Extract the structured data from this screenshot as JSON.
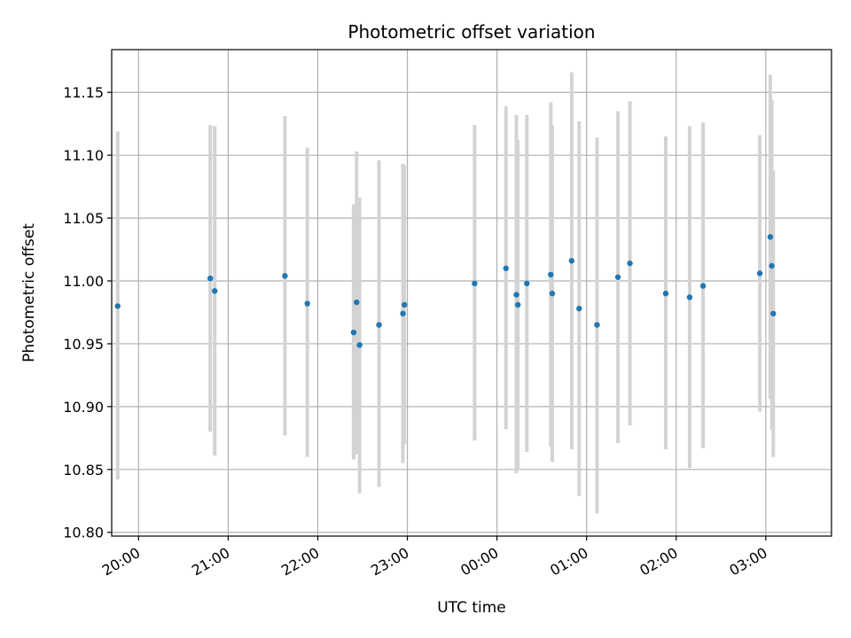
{
  "chart_data": {
    "type": "scatter",
    "title": "Photometric offset variation",
    "xlabel": "UTC time",
    "ylabel": "Photometric offset",
    "x_unit": "UTC time (HH:MM, over midnight)",
    "xlim": [
      "19:42",
      "03:44"
    ],
    "ylim": [
      10.797,
      11.184
    ],
    "x_ticks": [
      "20:00",
      "21:00",
      "22:00",
      "23:00",
      "00:00",
      "01:00",
      "02:00",
      "03:00"
    ],
    "y_ticks": [
      10.8,
      10.85,
      10.9,
      10.95,
      11.0,
      11.05,
      11.1,
      11.15
    ],
    "y_tick_labels": [
      "10.80",
      "10.85",
      "10.90",
      "10.95",
      "11.00",
      "11.05",
      "11.10",
      "11.15"
    ],
    "grid": true,
    "legend": "none",
    "colors": {
      "points": "#1f77b4",
      "error_bars": "#d3d3d3",
      "grid": "#b0b0b0"
    },
    "series": [
      {
        "points": [
          {
            "x": "19:46",
            "y": 10.98,
            "ylow": 10.842,
            "yhigh": 11.119
          },
          {
            "x": "20:48",
            "y": 11.002,
            "ylow": 10.88,
            "yhigh": 11.124
          },
          {
            "x": "20:51",
            "y": 10.992,
            "ylow": 10.861,
            "yhigh": 11.123
          },
          {
            "x": "21:38",
            "y": 11.004,
            "ylow": 10.877,
            "yhigh": 11.131
          },
          {
            "x": "21:53",
            "y": 10.982,
            "ylow": 10.86,
            "yhigh": 11.106
          },
          {
            "x": "22:24",
            "y": 10.959,
            "ylow": 10.858,
            "yhigh": 11.061
          },
          {
            "x": "22:26",
            "y": 10.983,
            "ylow": 10.862,
            "yhigh": 11.103
          },
          {
            "x": "22:28",
            "y": 10.949,
            "ylow": 10.831,
            "yhigh": 11.066
          },
          {
            "x": "22:41",
            "y": 10.965,
            "ylow": 10.836,
            "yhigh": 11.096
          },
          {
            "x": "22:57",
            "y": 10.974,
            "ylow": 10.855,
            "yhigh": 11.093
          },
          {
            "x": "22:58",
            "y": 10.981,
            "ylow": 10.87,
            "yhigh": 11.092
          },
          {
            "x": "23:45",
            "y": 10.998,
            "ylow": 10.873,
            "yhigh": 11.124
          },
          {
            "x": "00:06",
            "y": 11.01,
            "ylow": 10.882,
            "yhigh": 11.139
          },
          {
            "x": "00:13",
            "y": 10.989,
            "ylow": 10.847,
            "yhigh": 11.132
          },
          {
            "x": "00:14",
            "y": 10.981,
            "ylow": 10.85,
            "yhigh": 11.112
          },
          {
            "x": "00:20",
            "y": 10.998,
            "ylow": 10.864,
            "yhigh": 11.132
          },
          {
            "x": "00:36",
            "y": 11.005,
            "ylow": 10.868,
            "yhigh": 11.142
          },
          {
            "x": "00:37",
            "y": 10.99,
            "ylow": 10.856,
            "yhigh": 11.124
          },
          {
            "x": "00:50",
            "y": 11.016,
            "ylow": 10.866,
            "yhigh": 11.166
          },
          {
            "x": "00:55",
            "y": 10.978,
            "ylow": 10.829,
            "yhigh": 11.127
          },
          {
            "x": "01:07",
            "y": 10.965,
            "ylow": 10.815,
            "yhigh": 11.114
          },
          {
            "x": "01:21",
            "y": 11.003,
            "ylow": 10.871,
            "yhigh": 11.135
          },
          {
            "x": "01:29",
            "y": 11.014,
            "ylow": 10.885,
            "yhigh": 11.143
          },
          {
            "x": "01:53",
            "y": 10.99,
            "ylow": 10.866,
            "yhigh": 11.115
          },
          {
            "x": "02:09",
            "y": 10.987,
            "ylow": 10.851,
            "yhigh": 11.123
          },
          {
            "x": "02:18",
            "y": 10.996,
            "ylow": 10.867,
            "yhigh": 11.126
          },
          {
            "x": "02:56",
            "y": 11.006,
            "ylow": 10.896,
            "yhigh": 11.116
          },
          {
            "x": "03:03",
            "y": 11.035,
            "ylow": 10.906,
            "yhigh": 11.164
          },
          {
            "x": "03:04",
            "y": 11.012,
            "ylow": 10.882,
            "yhigh": 11.144
          },
          {
            "x": "03:05",
            "y": 10.974,
            "ylow": 10.86,
            "yhigh": 11.088
          }
        ]
      }
    ]
  }
}
